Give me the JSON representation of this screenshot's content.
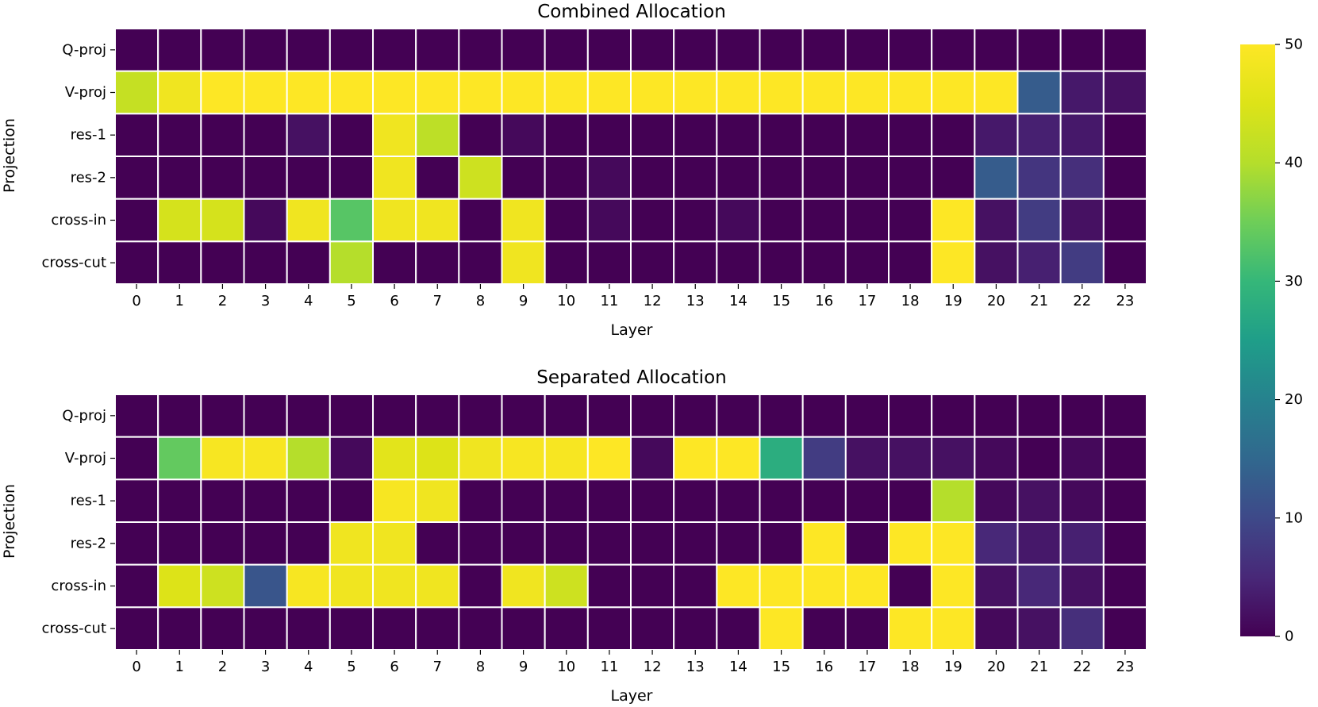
{
  "chart_data": [
    {
      "type": "heatmap",
      "title": "Combined Allocation",
      "xlabel": "Layer",
      "ylabel": "Projection",
      "x_categories": [
        "0",
        "1",
        "2",
        "3",
        "4",
        "5",
        "6",
        "7",
        "8",
        "9",
        "10",
        "11",
        "12",
        "13",
        "14",
        "15",
        "16",
        "17",
        "18",
        "19",
        "20",
        "21",
        "22",
        "23"
      ],
      "y_categories": [
        "Q-proj",
        "V-proj",
        "res-1",
        "res-2",
        "cross-in",
        "cross-cut"
      ],
      "values": [
        [
          0,
          0,
          0,
          0,
          0,
          0,
          0,
          0,
          0,
          0,
          0,
          0,
          0,
          0,
          0,
          0,
          0,
          0,
          0,
          0,
          0,
          0,
          0,
          0
        ],
        [
          42,
          48,
          50,
          50,
          50,
          50,
          50,
          50,
          50,
          50,
          50,
          50,
          50,
          50,
          50,
          50,
          50,
          50,
          50,
          50,
          50,
          13,
          3,
          2
        ],
        [
          0,
          0,
          0,
          0,
          2,
          0,
          48,
          41,
          0,
          1,
          0,
          0,
          0,
          0,
          0,
          0,
          0,
          0,
          0,
          0,
          3,
          4,
          3,
          0
        ],
        [
          0,
          0,
          0,
          0,
          0,
          0,
          48,
          0,
          43,
          0,
          0,
          1,
          0,
          0,
          0,
          0,
          0,
          0,
          0,
          0,
          13,
          7,
          6,
          0
        ],
        [
          0,
          44,
          44,
          1,
          48,
          33,
          48,
          48,
          0,
          48,
          0,
          1,
          0,
          0,
          1,
          0,
          0,
          0,
          0,
          50,
          2,
          8,
          2,
          0
        ],
        [
          0,
          0,
          0,
          0,
          0,
          40,
          0,
          0,
          0,
          48,
          0,
          0,
          0,
          0,
          0,
          0,
          0,
          0,
          0,
          50,
          2,
          4,
          8,
          0
        ]
      ],
      "colorbar": {
        "range": [
          0,
          50
        ],
        "ticks": [
          "0",
          "10",
          "20",
          "30",
          "40",
          "50"
        ],
        "colormap": "viridis"
      },
      "grid": false,
      "cell_border_color": "#ffffff"
    },
    {
      "type": "heatmap",
      "title": "Separated Allocation",
      "xlabel": "Layer",
      "ylabel": "Projection",
      "x_categories": [
        "0",
        "1",
        "2",
        "3",
        "4",
        "5",
        "6",
        "7",
        "8",
        "9",
        "10",
        "11",
        "12",
        "13",
        "14",
        "15",
        "16",
        "17",
        "18",
        "19",
        "20",
        "21",
        "22",
        "23"
      ],
      "y_categories": [
        "Q-proj",
        "V-proj",
        "res-1",
        "res-2",
        "cross-in",
        "cross-cut"
      ],
      "values": [
        [
          0,
          0,
          0,
          0,
          0,
          0,
          0,
          0,
          0,
          0,
          0,
          0,
          0,
          0,
          0,
          0,
          0,
          0,
          0,
          0,
          0,
          0,
          0,
          0
        ],
        [
          0,
          34,
          49,
          49,
          40,
          1,
          46,
          45,
          48,
          49,
          49,
          50,
          1,
          50,
          50,
          28,
          8,
          2,
          2,
          2,
          1,
          0,
          1,
          0
        ],
        [
          0,
          0,
          0,
          0,
          0,
          0,
          49,
          48,
          0,
          0,
          0,
          0,
          0,
          0,
          0,
          0,
          0,
          0,
          0,
          40,
          1,
          2,
          1,
          0
        ],
        [
          0,
          0,
          0,
          0,
          0,
          48,
          48,
          0,
          0,
          0,
          0,
          0,
          0,
          0,
          0,
          0,
          50,
          0,
          50,
          50,
          5,
          3,
          4,
          0
        ],
        [
          0,
          45,
          43,
          12,
          49,
          48,
          48,
          48,
          0,
          48,
          43,
          0,
          0,
          0,
          50,
          50,
          50,
          50,
          0,
          50,
          2,
          5,
          2,
          0
        ],
        [
          0,
          0,
          0,
          0,
          0,
          0,
          0,
          0,
          0,
          0,
          0,
          0,
          0,
          0,
          0,
          50,
          0,
          0,
          50,
          50,
          1,
          2,
          6,
          0
        ]
      ],
      "colorbar": {
        "range": [
          0,
          50
        ],
        "ticks": [
          "0",
          "10",
          "20",
          "30",
          "40",
          "50"
        ],
        "colormap": "viridis"
      },
      "grid": false,
      "cell_border_color": "#ffffff"
    }
  ]
}
